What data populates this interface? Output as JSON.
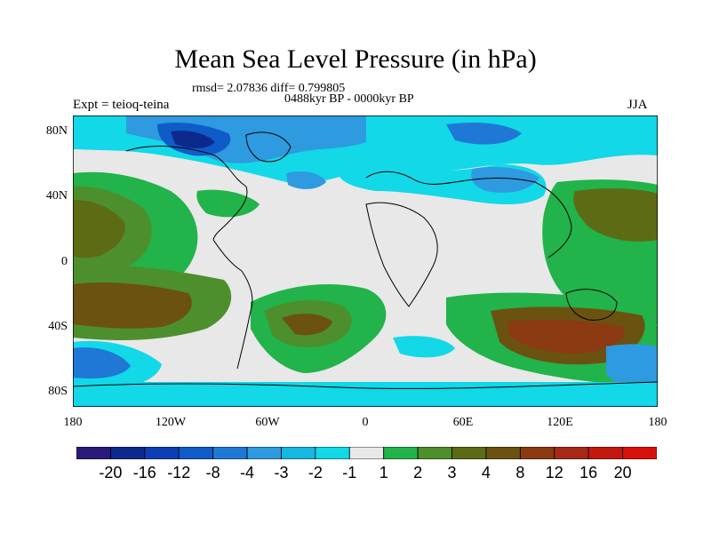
{
  "title": "Mean Sea Level Pressure (in hPa)",
  "stats_line": "rmsd= 2.07836 diff= 0.799805",
  "period_line": "0488kyr BP - 0000kyr BP",
  "experiment_label": "Expt = teioq-teina",
  "season_label": "JJA",
  "lat_ticks": [
    "80N",
    "40N",
    "0",
    "40S",
    "80S"
  ],
  "lon_ticks": [
    "180",
    "120W",
    "60W",
    "0",
    "60E",
    "120E",
    "180"
  ],
  "colorbar": {
    "colors": [
      "#2a1a7a",
      "#0b2a8c",
      "#0c3fb5",
      "#0f5cc8",
      "#1f78d6",
      "#2e9ae0",
      "#14b8e0",
      "#12d8e8",
      "#e8e8e8",
      "#22b34a",
      "#4d8f2c",
      "#5e6b15",
      "#6b5210",
      "#8b3a12",
      "#a82816",
      "#c4180f",
      "#d8100c"
    ],
    "labels": [
      "-20",
      "-16",
      "-12",
      "-8",
      "-4",
      "-3",
      "-2",
      "-1",
      "1",
      "2",
      "3",
      "4",
      "8",
      "12",
      "16",
      "20"
    ]
  }
}
